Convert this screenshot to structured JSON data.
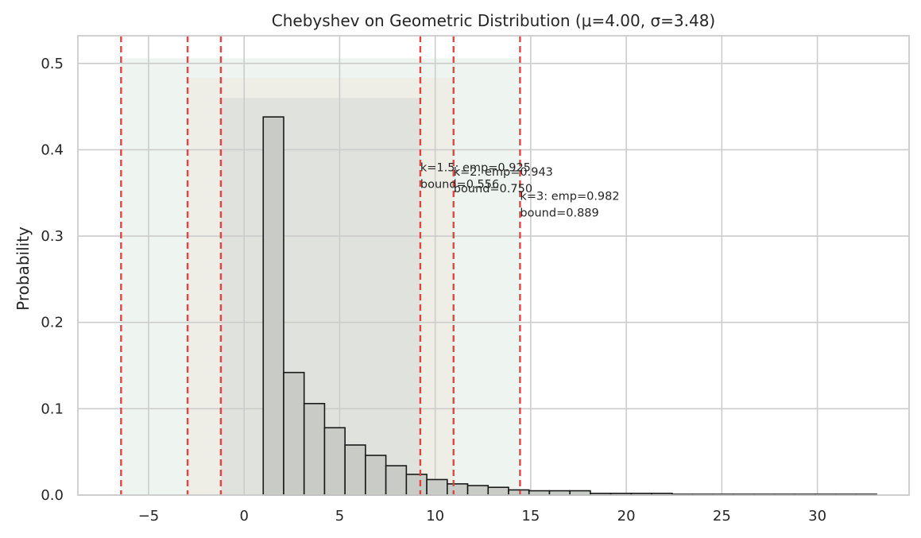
{
  "chart_data": {
    "type": "bar",
    "title": "Chebyshev on Geometric Distribution (μ=4.00, σ=3.48)",
    "xlabel": "",
    "ylabel": "Probability",
    "xlim": [
      -8.7,
      34.8
    ],
    "ylim": [
      0,
      0.532
    ],
    "x_ticks": [
      -5,
      0,
      5,
      10,
      15,
      20,
      25,
      30
    ],
    "x_tick_labels": [
      "−5",
      "0",
      "5",
      "10",
      "15",
      "20",
      "25",
      "30"
    ],
    "y_ticks": [
      0.0,
      0.1,
      0.2,
      0.3,
      0.4,
      0.5
    ],
    "y_tick_labels": [
      "0.0",
      "0.1",
      "0.2",
      "0.3",
      "0.4",
      "0.5"
    ],
    "grid": true,
    "bar_edges": [
      1,
      2.07,
      3.14,
      4.21,
      5.28,
      6.35,
      7.42,
      8.49,
      9.56,
      10.63,
      11.7,
      12.77,
      13.84,
      14.91,
      15.98,
      17.05,
      18.12,
      19.19,
      20.26,
      21.33,
      22.4,
      23.47,
      24.54,
      25.61,
      26.68,
      27.75,
      28.82,
      29.89,
      30.96,
      32.03,
      33.1
    ],
    "values": [
      0.438,
      0.142,
      0.106,
      0.078,
      0.058,
      0.046,
      0.034,
      0.024,
      0.018,
      0.013,
      0.011,
      0.009,
      0.006,
      0.005,
      0.005,
      0.005,
      0.002,
      0.002,
      0.002,
      0.002,
      0.001,
      0.001,
      0.001,
      0.001,
      0.001,
      0.001,
      0.001,
      0.001,
      0.001,
      0.001
    ],
    "bar_color": "#c8cbc6",
    "intervals": [
      {
        "k": "1.5",
        "lower": -1.22,
        "upper": 9.22,
        "shade_height": 0.46,
        "color": "#e0e3dd",
        "label_line1": "k=1.5: emp=0.925",
        "label_line2": "bound=0.556",
        "label_x": 9.22,
        "label_y": 0.375
      },
      {
        "k": "2",
        "lower": -2.96,
        "upper": 10.96,
        "shade_height": 0.483,
        "color": "#efeee6",
        "label_line1": "k=2: emp=0.943",
        "label_line2": "bound=0.750",
        "label_x": 10.96,
        "label_y": 0.37
      },
      {
        "k": "3",
        "lower": -6.44,
        "upper": 14.44,
        "shade_height": 0.506,
        "color": "#eef5f0",
        "label_line1": "k=3: emp=0.982",
        "label_line2": "bound=0.889",
        "label_x": 14.44,
        "label_y": 0.342
      }
    ],
    "line_color": "#e8393b"
  }
}
